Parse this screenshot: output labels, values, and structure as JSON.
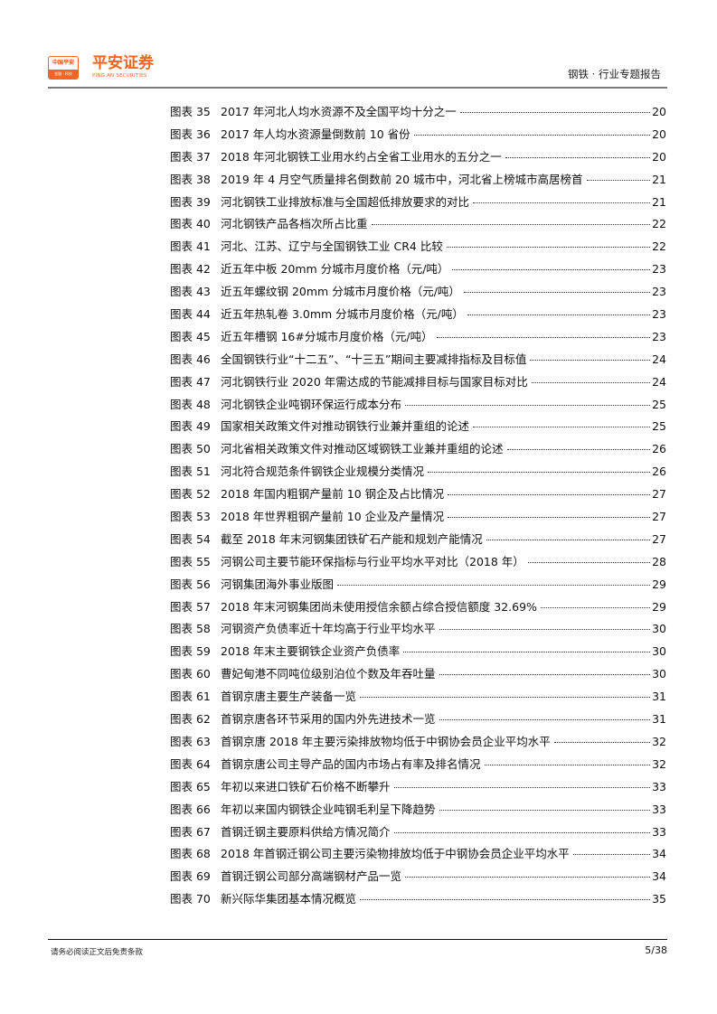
{
  "header": {
    "logo_top": "中国平安",
    "logo_bottom": "金融 · 科技",
    "brand_cn": "平安证券",
    "brand_en": "PING AN SECURITIES",
    "report_type": "钢铁 · 行业专题报告",
    "brand_color": "#f26522"
  },
  "toc": [
    {
      "label": "图表 35",
      "title": "2017 年河北人均水资源不及全国平均十分之一",
      "page": "20"
    },
    {
      "label": "图表 36",
      "title": "2017 年人均水资源量倒数前 10 省份",
      "page": "20"
    },
    {
      "label": "图表 37",
      "title": "2018 年河北钢铁工业用水约占全省工业用水的五分之一",
      "page": "20"
    },
    {
      "label": "图表 38",
      "title": "2019 年 4 月空气质量排名倒数前 20 城市中，河北省上榜城市高居榜首",
      "page": "21"
    },
    {
      "label": "图表 39",
      "title": "河北钢铁工业排放标准与全国超低排放要求的对比",
      "page": "21"
    },
    {
      "label": "图表 40",
      "title": "河北钢铁产品各档次所占比重",
      "page": "22"
    },
    {
      "label": "图表 41",
      "title": "河北、江苏、辽宁与全国钢铁工业 CR4 比较",
      "page": "22"
    },
    {
      "label": "图表 42",
      "title": "近五年中板 20mm 分城市月度价格（元/吨）",
      "page": "23"
    },
    {
      "label": "图表 43",
      "title": "近五年螺纹钢 20mm 分城市月度价格（元/吨）",
      "page": "23"
    },
    {
      "label": "图表 44",
      "title": "近五年热轧卷 3.0mm 分城市月度价格（元/吨）",
      "page": "23"
    },
    {
      "label": "图表 45",
      "title": "近五年槽钢 16#分城市月度价格（元/吨）",
      "page": "23"
    },
    {
      "label": "图表 46",
      "title": "全国钢铁行业“十二五”、“十三五”期间主要减排指标及目标值",
      "page": "24"
    },
    {
      "label": "图表 47",
      "title": "河北钢铁行业 2020 年需达成的节能减排目标与国家目标对比",
      "page": "24"
    },
    {
      "label": "图表 48",
      "title": "河北钢铁企业吨钢环保运行成本分布",
      "page": "25"
    },
    {
      "label": "图表 49",
      "title": "国家相关政策文件对推动钢铁行业兼并重组的论述",
      "page": "25"
    },
    {
      "label": "图表 50",
      "title": "河北省相关政策文件对推动区域钢铁工业兼并重组的论述",
      "page": "26"
    },
    {
      "label": "图表 51",
      "title": "河北符合规范条件钢铁企业规模分类情况",
      "page": "26"
    },
    {
      "label": "图表 52",
      "title": "2018 年国内粗钢产量前 10 钢企及占比情况",
      "page": "27"
    },
    {
      "label": "图表 53",
      "title": "2018 年世界粗钢产量前 10 企业及产量情况",
      "page": "27"
    },
    {
      "label": "图表 54",
      "title": "截至 2018 年末河钢集团铁矿石产能和规划产能情况",
      "page": "27"
    },
    {
      "label": "图表 55",
      "title": "河钢公司主要节能环保指标与行业平均水平对比（2018 年）",
      "page": "28"
    },
    {
      "label": "图表 56",
      "title": "河钢集团海外事业版图",
      "page": "29"
    },
    {
      "label": "图表 57",
      "title": "2018 年末河钢集团尚未使用授信余额占综合授信额度 32.69%",
      "page": "29"
    },
    {
      "label": "图表 58",
      "title": "河钢资产负债率近十年均高于行业平均水平",
      "page": "30"
    },
    {
      "label": "图表 59",
      "title": "2018 年末主要钢铁企业资产负债率",
      "page": "30"
    },
    {
      "label": "图表 60",
      "title": "曹妃甸港不同吨位级别泊位个数及年吞吐量",
      "page": "30"
    },
    {
      "label": "图表 61",
      "title": "首钢京唐主要生产装备一览",
      "page": "31"
    },
    {
      "label": "图表 62",
      "title": "首钢京唐各环节采用的国内外先进技术一览",
      "page": "31"
    },
    {
      "label": "图表 63",
      "title": "首钢京唐 2018 年主要污染排放物均低于中钢协会员企业平均水平",
      "page": "32"
    },
    {
      "label": "图表 64",
      "title": "首钢京唐公司主导产品的国内市场占有率及排名情况",
      "page": "32"
    },
    {
      "label": "图表 65",
      "title": "年初以来进口铁矿石价格不断攀升",
      "page": "33"
    },
    {
      "label": "图表 66",
      "title": "年初以来国内钢铁企业吨钢毛利呈下降趋势",
      "page": "33"
    },
    {
      "label": "图表 67",
      "title": "首钢迁钢主要原料供给方情况简介",
      "page": "33"
    },
    {
      "label": "图表 68",
      "title": "2018 年首钢迁钢公司主要污染物排放均低于中钢协会员企业平均水平",
      "page": "34"
    },
    {
      "label": "图表 69",
      "title": "首钢迁钢公司部分高端钢材产品一览",
      "page": "34"
    },
    {
      "label": "图表 70",
      "title": "新兴际华集团基本情况概览",
      "page": "35"
    }
  ],
  "footer": {
    "disclaimer": "请务必阅读正文后免责条款",
    "page_number": "5/38"
  }
}
